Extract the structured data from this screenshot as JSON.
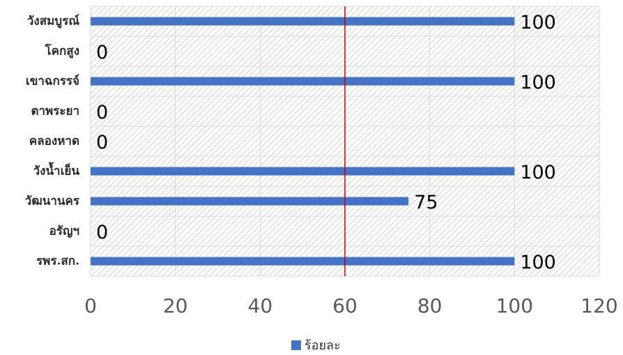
{
  "chart_data": {
    "type": "bar",
    "orientation": "horizontal",
    "categories": [
      "วังสมบูรณ์",
      "โคกสูง",
      "เขาฉกรรจ์",
      "ตาพระยา",
      "คลองหาด",
      "วังน้ำเย็น",
      "วัฒนานคร",
      "อรัญฯ",
      "รพร.สก."
    ],
    "series": [
      {
        "name": "ร้อยละ",
        "values": [
          100,
          0,
          100,
          0,
          0,
          100,
          75,
          0,
          100
        ],
        "color": "#4472C4"
      }
    ],
    "data_labels": [
      "100",
      "0",
      "100",
      "0",
      "0",
      "100",
      "75",
      "0",
      "100"
    ],
    "xlim": [
      0,
      120
    ],
    "x_ticks": [
      "0",
      "20",
      "40",
      "60",
      "80",
      "100",
      "120"
    ],
    "reference_line": {
      "value": 60,
      "color": "#C00000"
    },
    "grid": true,
    "background_pattern": "diagonal-hatch",
    "legend": {
      "position": "bottom-center",
      "entries": [
        "ร้อยละ"
      ]
    }
  }
}
